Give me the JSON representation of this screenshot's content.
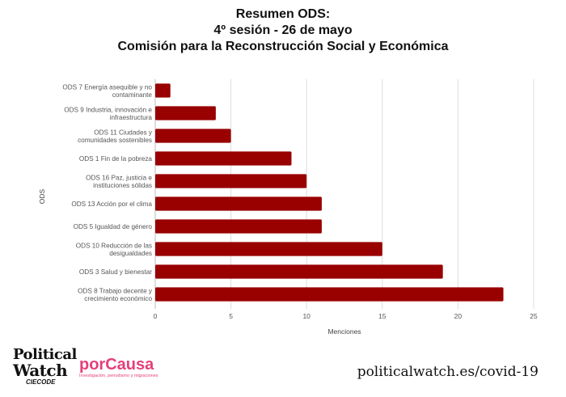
{
  "chart_data": {
    "type": "bar",
    "orientation": "horizontal",
    "title": [
      "Resumen ODS:",
      "4º sesión - 26 de mayo",
      "Comisión para la Reconstrucción Social y Económica"
    ],
    "xlabel": "Menciones",
    "ylabel": "ODS",
    "xlim": [
      0,
      25
    ],
    "xticks": [
      0,
      5,
      10,
      15,
      20,
      25
    ],
    "grid": true,
    "bar_color": "#990000",
    "categories": [
      [
        "ODS 7 Energía asequible y no",
        "contaminante"
      ],
      [
        "ODS 9 Industria, innovación e",
        "infraestructura"
      ],
      [
        "ODS 11 Ciudades y",
        "comunidades sostenibles"
      ],
      [
        "ODS 1 Fin de la pobreza"
      ],
      [
        "ODS 16 Paz, justicia e",
        "instituciones sólidas"
      ],
      [
        "ODS 13 Acción por el clima"
      ],
      [
        "ODS 5 Igualdad de género"
      ],
      [
        "ODS 10 Reducción de las",
        "desigualdades"
      ],
      [
        "ODS 3 Salud y bienestar"
      ],
      [
        "ODS 8 Trabajo decente y",
        "crecimiento económico"
      ]
    ],
    "values": [
      1,
      4,
      5,
      9,
      10,
      11,
      11,
      15,
      19,
      23
    ]
  },
  "footer": {
    "logo_pw_line1": "Political",
    "logo_pw_line2": "Watch",
    "logo_pw_sub": "CIECODE",
    "logo_pc_name": "porCausa",
    "logo_pc_tagline": "Investigación, periodismo y migraciones",
    "url": "politicalwatch.es/covid-19"
  }
}
